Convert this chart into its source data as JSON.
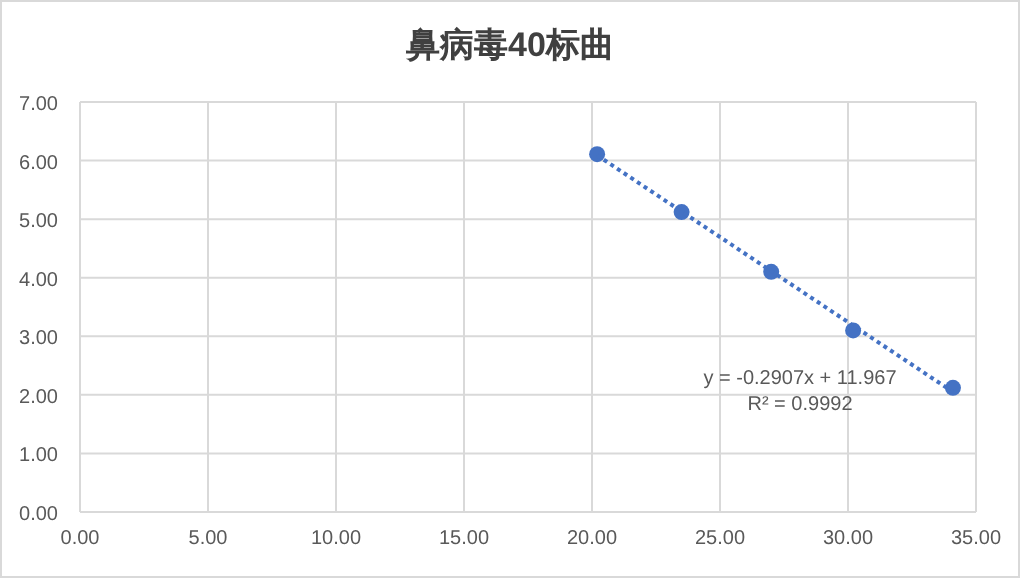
{
  "chart_data": {
    "type": "scatter",
    "title": "鼻病毒40标曲",
    "x": [
      20.2,
      23.5,
      27.0,
      30.2,
      34.1
    ],
    "series": [
      {
        "type": "scatter",
        "color": "#4472c4",
        "values": [
          6.11,
          5.12,
          4.1,
          3.1,
          2.12
        ],
        "marker": "circle"
      },
      {
        "type": "line",
        "color": "#4472c4",
        "x": [
          20.2,
          34.1
        ],
        "values": [
          6.09,
          2.05
        ],
        "line_style": "dotted",
        "marker": "none"
      }
    ],
    "xlim": [
      0,
      35
    ],
    "xticks": [
      {
        "value": 0,
        "label": "0.00"
      },
      {
        "value": 5,
        "label": "5.00"
      },
      {
        "value": 10,
        "label": "10.00"
      },
      {
        "value": 15,
        "label": "15.00"
      },
      {
        "value": 20,
        "label": "20.00"
      },
      {
        "value": 25,
        "label": "25.00"
      },
      {
        "value": 30,
        "label": "30.00"
      },
      {
        "value": 35,
        "label": "35.00"
      }
    ],
    "ylim": [
      0,
      7
    ],
    "yticks": [
      {
        "value": 0,
        "label": "0.00"
      },
      {
        "value": 1,
        "label": "1.00"
      },
      {
        "value": 2,
        "label": "2.00"
      },
      {
        "value": 3,
        "label": "3.00"
      },
      {
        "value": 4,
        "label": "4.00"
      },
      {
        "value": 5,
        "label": "5.00"
      },
      {
        "value": 6,
        "label": "6.00"
      },
      {
        "value": 7,
        "label": "7.00"
      }
    ],
    "grid": true,
    "annotations": [
      "y = -0.2907x + 11.967",
      "R² = 0.9992"
    ]
  }
}
